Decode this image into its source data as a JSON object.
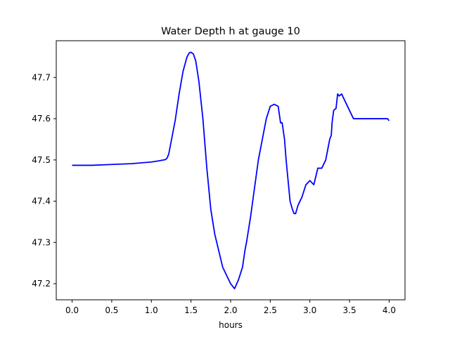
{
  "chart_data": {
    "type": "line",
    "title": "Water Depth h at gauge 10",
    "xlabel": "hours",
    "ylabel": "",
    "xlim": [
      -0.2,
      4.2
    ],
    "ylim": [
      47.161,
      47.789
    ],
    "x_ticks": [
      0.0,
      0.5,
      1.0,
      1.5,
      2.0,
      2.5,
      3.0,
      3.5,
      4.0
    ],
    "x_tick_labels": [
      "0.0",
      "0.5",
      "1.0",
      "1.5",
      "2.0",
      "2.5",
      "3.0",
      "3.5",
      "4.0"
    ],
    "y_ticks": [
      47.2,
      47.3,
      47.4,
      47.5,
      47.6,
      47.7
    ],
    "y_tick_labels": [
      "47.2",
      "47.3",
      "47.4",
      "47.5",
      "47.6",
      "47.7"
    ],
    "grid": false,
    "series": [
      {
        "color": "#0000ff",
        "x": [
          0.0,
          0.25,
          0.5,
          0.75,
          1.0,
          1.1,
          1.18,
          1.2,
          1.22,
          1.25,
          1.3,
          1.35,
          1.4,
          1.45,
          1.48,
          1.5,
          1.53,
          1.56,
          1.6,
          1.65,
          1.7,
          1.75,
          1.8,
          1.85,
          1.9,
          1.95,
          2.0,
          2.05,
          2.1,
          2.15,
          2.18,
          2.2,
          2.25,
          2.3,
          2.35,
          2.4,
          2.45,
          2.5,
          2.55,
          2.6,
          2.63,
          2.65,
          2.68,
          2.7,
          2.73,
          2.75,
          2.78,
          2.8,
          2.82,
          2.85,
          2.9,
          2.95,
          3.0,
          3.05,
          3.1,
          3.15,
          3.2,
          3.22,
          3.25,
          3.27,
          3.28,
          3.3,
          3.33,
          3.35,
          3.37,
          3.4,
          3.45,
          3.5,
          3.55,
          3.6,
          3.62,
          3.65,
          3.68,
          3.7,
          3.72,
          3.75,
          3.77,
          3.8,
          3.85,
          3.9,
          3.93,
          3.95,
          3.98,
          4.0
        ],
        "y": [
          47.487,
          47.487,
          47.489,
          47.491,
          47.495,
          47.498,
          47.501,
          47.505,
          47.515,
          47.545,
          47.595,
          47.66,
          47.715,
          47.75,
          47.76,
          47.761,
          47.757,
          47.74,
          47.69,
          47.6,
          47.48,
          47.38,
          47.32,
          47.28,
          47.24,
          47.22,
          47.2,
          47.188,
          47.21,
          47.24,
          47.28,
          47.3,
          47.36,
          47.43,
          47.5,
          47.55,
          47.6,
          47.63,
          47.635,
          47.63,
          47.59,
          47.59,
          47.55,
          47.5,
          47.44,
          47.4,
          47.38,
          47.37,
          47.37,
          47.39,
          47.41,
          47.44,
          47.45,
          47.44,
          47.48,
          47.48,
          47.5,
          47.52,
          47.55,
          47.56,
          47.59,
          47.62,
          47.625,
          47.66,
          47.655,
          47.66,
          47.64,
          47.62,
          47.6,
          47.6,
          47.6,
          47.6,
          47.6,
          47.6,
          47.6,
          47.6,
          47.6,
          47.6,
          47.6,
          47.6,
          47.6,
          47.6,
          47.6,
          47.595
        ]
      }
    ]
  }
}
